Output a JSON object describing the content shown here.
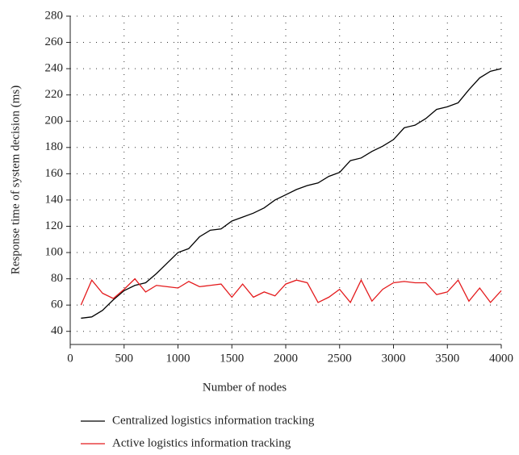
{
  "chart_data": {
    "type": "line",
    "x_label": "Number of nodes",
    "y_label": "Response time of system decision (ms)",
    "x": [
      100,
      200,
      300,
      400,
      500,
      600,
      700,
      800,
      900,
      1000,
      1100,
      1200,
      1300,
      1400,
      1500,
      1600,
      1700,
      1800,
      1900,
      2000,
      2100,
      2200,
      2300,
      2400,
      2500,
      2600,
      2700,
      2800,
      2900,
      3000,
      3100,
      3200,
      3300,
      3400,
      3500,
      3600,
      3700,
      3800,
      3900,
      4000
    ],
    "series": [
      {
        "name": "Centralized logistics information tracking",
        "color": "#000000",
        "values": [
          50,
          51,
          56,
          64,
          71,
          75,
          77,
          84,
          92,
          100,
          103,
          112,
          117,
          118,
          124,
          127,
          130,
          134,
          140,
          144,
          148,
          151,
          153,
          158,
          161,
          170,
          172,
          177,
          181,
          186,
          195,
          197,
          202,
          209,
          211,
          214,
          224,
          233,
          238,
          240
        ]
      },
      {
        "name": "Active logistics information tracking",
        "color": "#e41a1c",
        "values": [
          60,
          79,
          69,
          65,
          72,
          80,
          70,
          75,
          74,
          73,
          78,
          74,
          75,
          76,
          66,
          76,
          66,
          70,
          67,
          76,
          79,
          77,
          62,
          66,
          72,
          62,
          79,
          63,
          72,
          77,
          78,
          77,
          77,
          68,
          70,
          79,
          63,
          73,
          62,
          71
        ]
      }
    ],
    "xlim": [
      0,
      4000
    ],
    "xticks": [
      0,
      500,
      1000,
      1500,
      2000,
      2500,
      3000,
      3500,
      4000
    ],
    "ylim": [
      30,
      280
    ],
    "yticks": [
      40,
      60,
      80,
      100,
      120,
      140,
      160,
      180,
      200,
      220,
      240,
      260,
      280
    ],
    "grid": true,
    "legend": "bottom"
  }
}
